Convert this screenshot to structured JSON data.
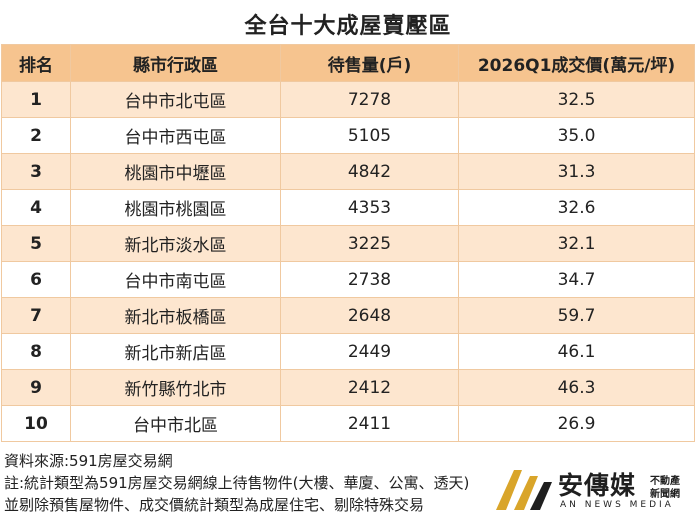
{
  "title": "全台十大成屋賣壓區",
  "headers": [
    "排名",
    "縣市行政區",
    "待售量(戶)",
    "2026Q1成交價(萬元/坪)"
  ],
  "rows": [
    {
      "rank": "1",
      "district": "台中市北屯區",
      "inventory": "7278",
      "price": "32.5"
    },
    {
      "rank": "2",
      "district": "台中市西屯區",
      "inventory": "5105",
      "price": "35.0"
    },
    {
      "rank": "3",
      "district": "桃園市中壢區",
      "inventory": "4842",
      "price": "31.3"
    },
    {
      "rank": "4",
      "district": "桃園市桃園區",
      "inventory": "4353",
      "price": "32.6"
    },
    {
      "rank": "5",
      "district": "新北市淡水區",
      "inventory": "3225",
      "price": "32.1"
    },
    {
      "rank": "6",
      "district": "台中市南屯區",
      "inventory": "2738",
      "price": "34.7"
    },
    {
      "rank": "7",
      "district": "新北市板橋區",
      "inventory": "2648",
      "price": "59.7"
    },
    {
      "rank": "8",
      "district": "新北市新店區",
      "inventory": "2449",
      "price": "46.1"
    },
    {
      "rank": "9",
      "district": "新竹縣竹北市",
      "inventory": "2412",
      "price": "46.3"
    },
    {
      "rank": "10",
      "district": "台中市北區",
      "inventory": "2411",
      "price": "26.9"
    }
  ],
  "notes": [
    "資料來源:591房屋交易網",
    "註:統計類型為591房屋交易網線上待售物件(大樓、華廈、公寓、透天)",
    "並剔除預售屋物件、成交價統計類型為成屋住宅、剔除特殊交易"
  ],
  "logo": {
    "name": "安傳媒",
    "sub1": "不動產",
    "sub2": "新聞網",
    "tagline": "AN NEWS MEDIA",
    "colors": {
      "gold": "#d9a52a",
      "dark": "#1f1f1f"
    }
  },
  "colors": {
    "header_bg": "#f6c48f",
    "stripe_bg": "#fde6cf",
    "border": "#f0c9a0"
  }
}
